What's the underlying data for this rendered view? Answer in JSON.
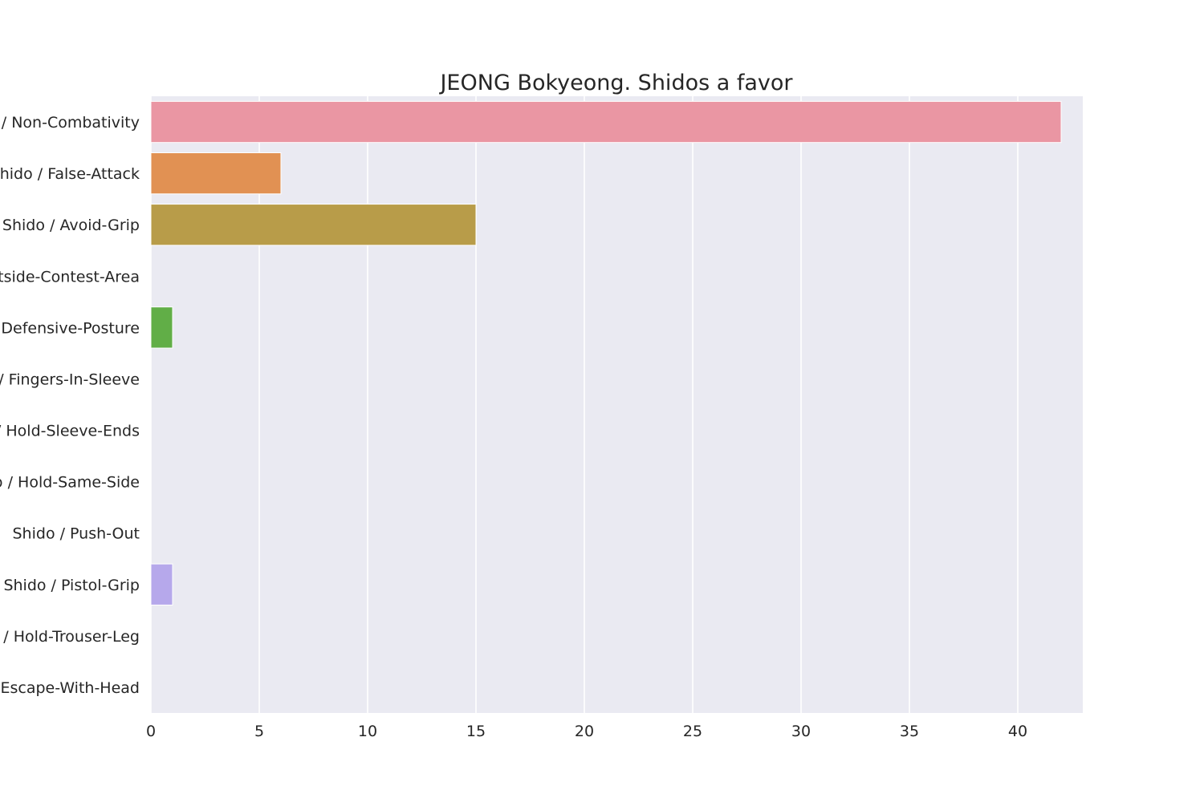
{
  "chart_data": {
    "type": "bar",
    "orientation": "horizontal",
    "title": "JEONG Bokyeong. Shidos a favor",
    "xlabel": "",
    "ylabel": "",
    "categories": [
      "Shido / Non-Combativity",
      "Shido / False-Attack",
      "Shido / Avoid-Grip",
      "Shido / Outside-Contest-Area",
      "Shido / Defensive-Posture",
      "Shido / Fingers-In-Sleeve",
      "Shido / Hold-Sleeve-Ends",
      "Shido / Hold-Same-Side",
      "Shido / Push-Out",
      "Shido / Pistol-Grip",
      "Shido / Hold-Trouser-Leg",
      "Shido / Escape-With-Head"
    ],
    "values": [
      42,
      6,
      15,
      0,
      1,
      0,
      0,
      0,
      0,
      1,
      0,
      0
    ],
    "colors": [
      "#ea96a3",
      "#e19153",
      "#b89c49",
      "#98a246",
      "#61ae47",
      "#4fb08a",
      "#52ab9f",
      "#56a7b3",
      "#5ca4cd",
      "#b6a8eb",
      "#db8de7",
      "#ec8fc6"
    ],
    "xlim": [
      0,
      43
    ],
    "xticks": [
      0,
      5,
      10,
      15,
      20,
      25,
      30,
      35,
      40
    ],
    "grid": true,
    "legend": "none",
    "background": "#eaeaf2"
  }
}
